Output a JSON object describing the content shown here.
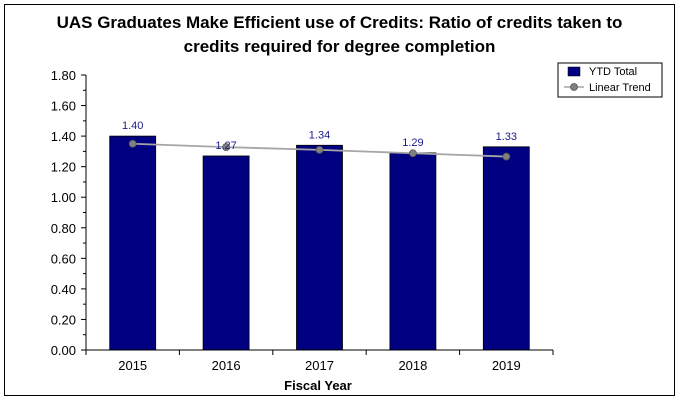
{
  "chart_data": {
    "type": "bar",
    "title_lines": [
      "UAS Graduates Make Efficient use of Credits: Ratio of credits taken to",
      "credits required for degree completion"
    ],
    "xlabel": "Fiscal Year",
    "ylabel": "",
    "categories": [
      "2015",
      "2016",
      "2017",
      "2018",
      "2019"
    ],
    "series": [
      {
        "name": "YTD Total",
        "type": "bar",
        "color": "#000080",
        "values": [
          1.4,
          1.27,
          1.34,
          1.29,
          1.33
        ],
        "labels": [
          "1.40",
          "1.27",
          "1.34",
          "1.29",
          "1.33"
        ]
      },
      {
        "name": "Linear Trend",
        "type": "line",
        "color": "#a6a6a6",
        "marker_color": "#808080",
        "values": [
          1.35,
          1.328,
          1.31,
          1.288,
          1.266
        ]
      }
    ],
    "ylim": [
      0,
      1.8
    ],
    "yticks": [
      "0.00",
      "0.20",
      "0.40",
      "0.60",
      "0.80",
      "1.00",
      "1.20",
      "1.40",
      "1.60",
      "1.80"
    ],
    "grid": false,
    "legend_position": "top-right"
  }
}
